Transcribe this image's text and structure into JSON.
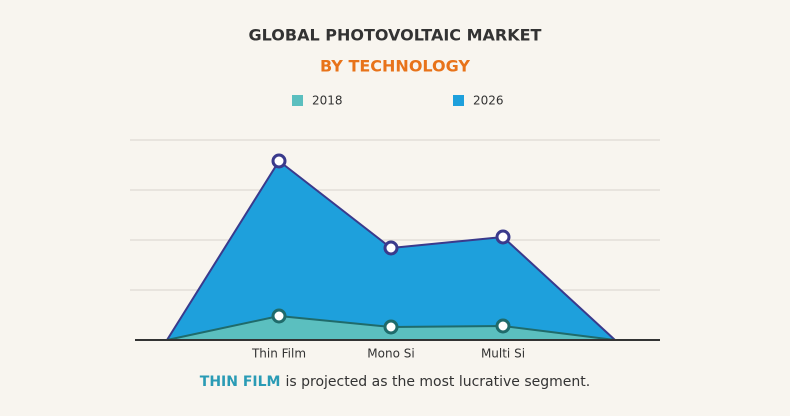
{
  "chart_data": {
    "type": "area",
    "title": "GLOBAL PHOTOVOLTAIC MARKET",
    "subtitle": "BY TECHNOLOGY",
    "categories": [
      null,
      "Thin Film",
      "Mono Si",
      "Multi Si",
      null
    ],
    "series": [
      {
        "name": "2018",
        "color": "#5bbfbf",
        "stroke": "#1f6b6b",
        "values": [
          0,
          0.48,
          0.26,
          0.28,
          0
        ]
      },
      {
        "name": "2026",
        "color": "#1ea0dc",
        "stroke": "#3a3a8c",
        "values": [
          0,
          3.58,
          1.84,
          2.06,
          0
        ]
      }
    ],
    "ylim": [
      0,
      4
    ],
    "yticks": [
      1,
      2,
      3,
      4
    ],
    "grid": true,
    "annotation": {
      "highlight": "THIN FILM",
      "text": "is projected as the most lucrative segment."
    }
  }
}
